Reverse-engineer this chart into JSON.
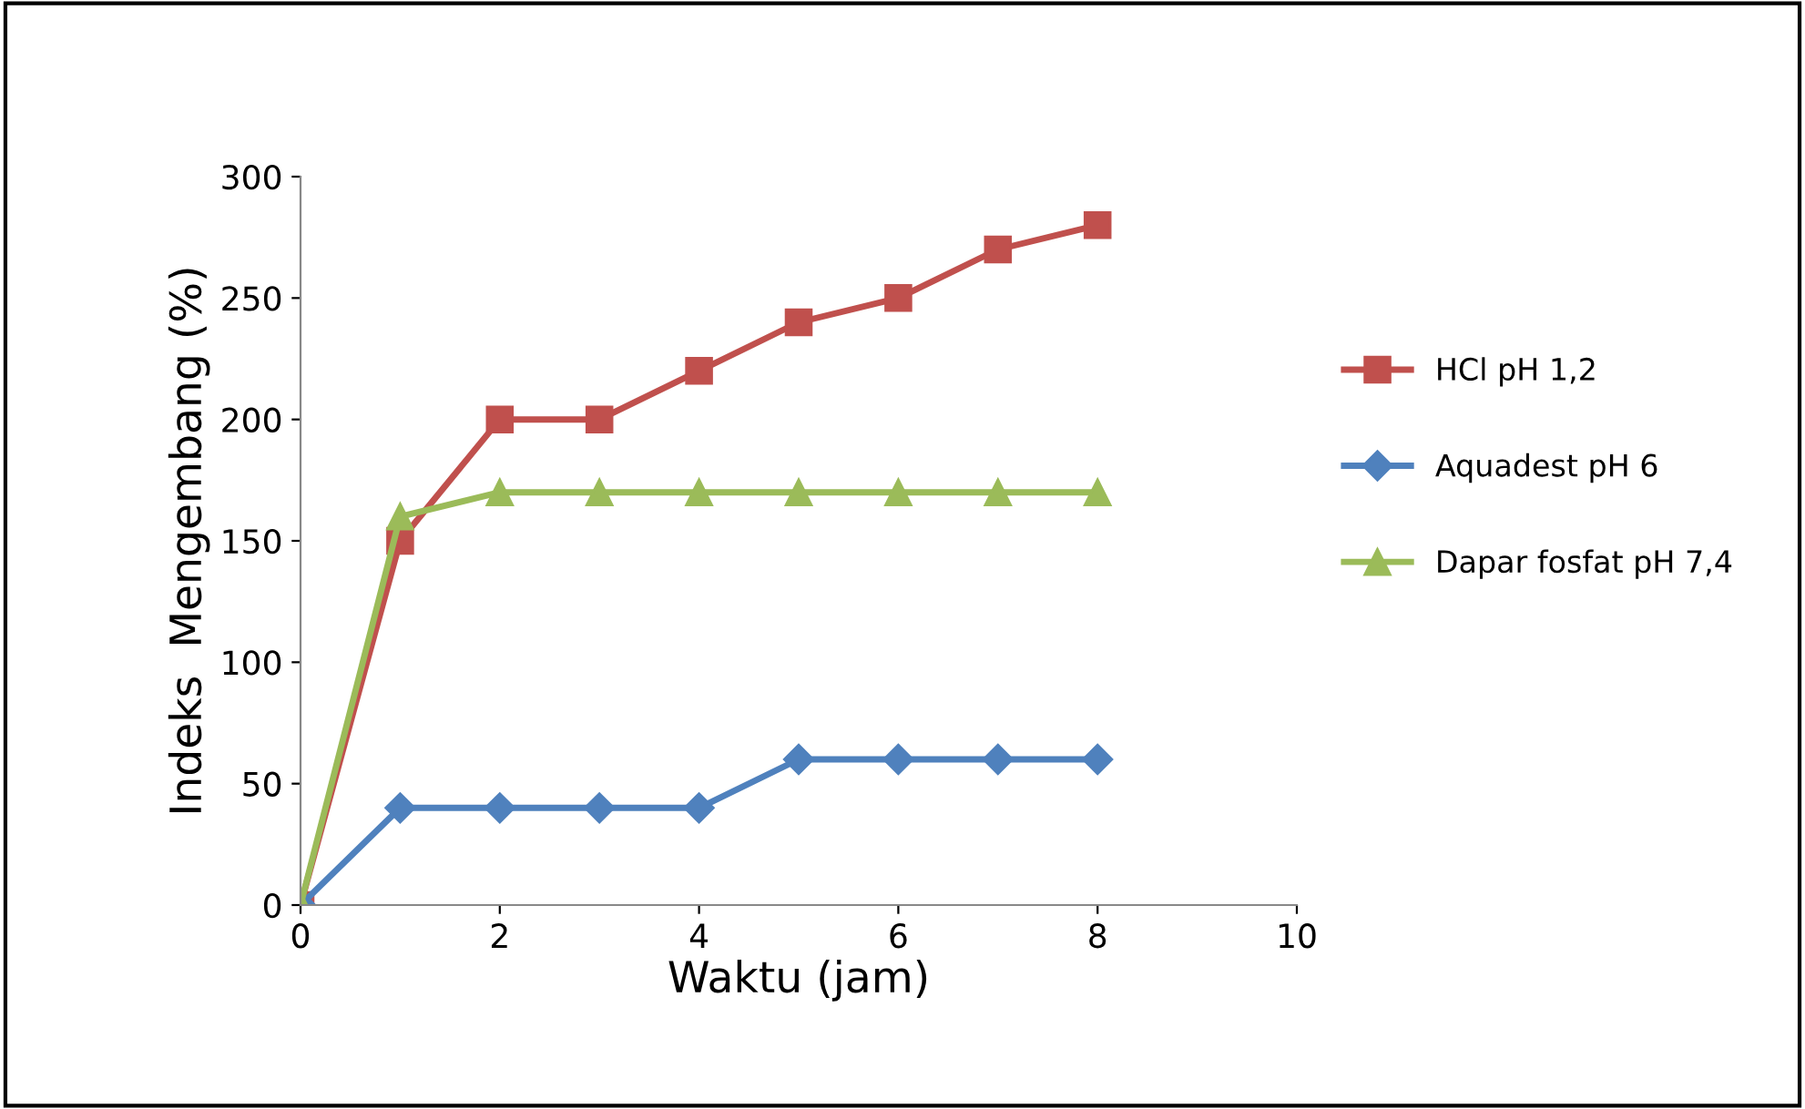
{
  "chart_data": {
    "type": "line",
    "xlabel": "Waktu (jam)",
    "ylabel": "Indeks  Mengembang (%)",
    "x": [
      0,
      1,
      2,
      3,
      4,
      5,
      6,
      7,
      8
    ],
    "series": [
      {
        "name": "HCl pH 1,2",
        "color": "#c0504d",
        "marker": "square",
        "values": [
          0,
          150,
          200,
          200,
          220,
          240,
          250,
          270,
          280
        ]
      },
      {
        "name": "Aquadest pH 6",
        "color": "#4f81bd",
        "marker": "diamond",
        "values": [
          0,
          40,
          40,
          40,
          40,
          60,
          60,
          60,
          60
        ]
      },
      {
        "name": "Dapar fosfat pH 7,4",
        "color": "#9bbb59",
        "marker": "triangle",
        "values": [
          0,
          160,
          170,
          170,
          170,
          170,
          170,
          170,
          170
        ]
      }
    ],
    "xlim": [
      0,
      10
    ],
    "xticks": [
      0,
      2,
      4,
      6,
      8,
      10
    ],
    "ylim": [
      0,
      300
    ],
    "yticks": [
      0,
      50,
      100,
      150,
      200,
      250,
      300
    ],
    "legend": "right",
    "line_style": "solid"
  }
}
